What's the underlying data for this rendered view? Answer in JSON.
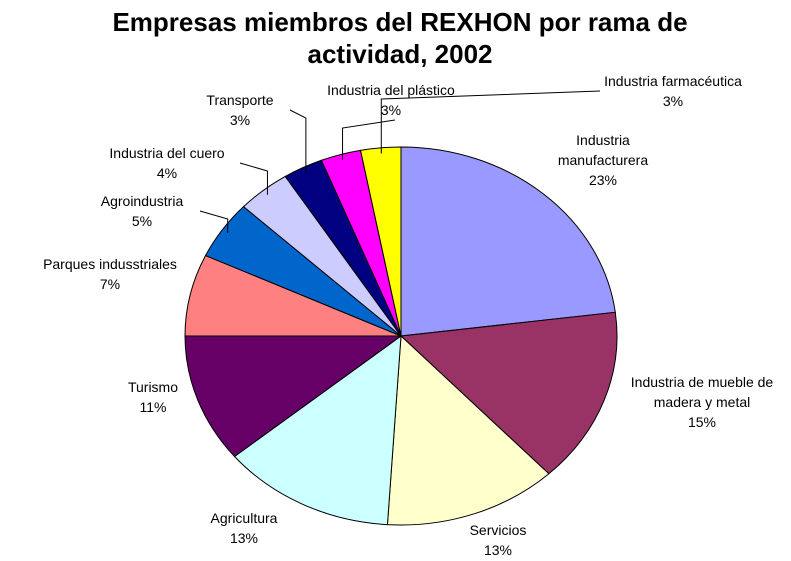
{
  "chart_data": {
    "type": "pie",
    "title": "Empresas miembros del REXHON por rama de actividad, 2002",
    "categories": [
      "Industria manufacturera",
      "Industria de mueble de madera y metal",
      "Servicios",
      "Agricultura",
      "Turismo",
      "Parques indusstriales",
      "Agroindustria",
      "Industria del cuero",
      "Transporte",
      "Industria del plástico",
      "Industria farmacéutica"
    ],
    "values": [
      23,
      15,
      13,
      13,
      11,
      7,
      5,
      4,
      3,
      3,
      3
    ],
    "value_labels": [
      "23%",
      "15%",
      "13%",
      "13%",
      "11%",
      "7%",
      "5%",
      "4%",
      "3%",
      "3%",
      "3%"
    ],
    "colors": [
      "#9999ff",
      "#993366",
      "#ffffcc",
      "#ccffff",
      "#660066",
      "#ff8080",
      "#0066cc",
      "#ccccff",
      "#000080",
      "#ff00ff",
      "#ffff00"
    ]
  }
}
